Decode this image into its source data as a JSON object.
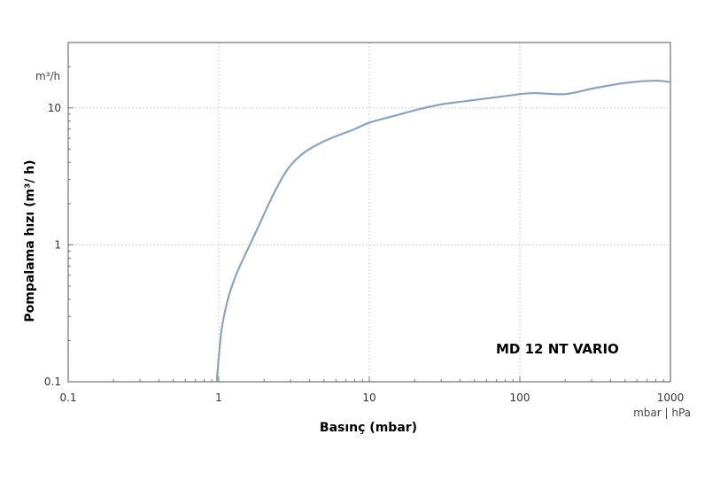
{
  "chart_data": {
    "type": "line",
    "title": "",
    "xlabel": "Basınç (mbar)",
    "ylabel": "Pompalama hızı (m³/ h)",
    "x_unit_label": "mbar | hPa",
    "y_unit_label": "m³/h",
    "x_scale": "log",
    "y_scale": "log",
    "xlim": [
      0.1,
      1000
    ],
    "ylim": [
      0.1,
      30
    ],
    "x_ticks": [
      "0.1",
      "1",
      "10",
      "100",
      "1000"
    ],
    "y_ticks": [
      "0.1",
      "1",
      "10"
    ],
    "grid": true,
    "annotation": "MD 12 NT VARIO",
    "line_color": "#8aa4bf",
    "series": [
      {
        "x": [
          0.97,
          1.0,
          1.05,
          1.15,
          1.3,
          1.5,
          1.8,
          2.2,
          2.6,
          3.0,
          3.5,
          4.0,
          5.0,
          6.0,
          8.0,
          10,
          15,
          20,
          30,
          50,
          80,
          120,
          200,
          300,
          500,
          800,
          1000
        ],
        "y": [
          0.1,
          0.15,
          0.25,
          0.4,
          0.6,
          0.85,
          1.3,
          2.1,
          3.0,
          3.8,
          4.5,
          5.0,
          5.7,
          6.2,
          7.0,
          7.8,
          8.8,
          9.6,
          10.6,
          11.4,
          12.2,
          12.8,
          12.6,
          13.8,
          15.2,
          15.8,
          15.4
        ]
      }
    ]
  }
}
